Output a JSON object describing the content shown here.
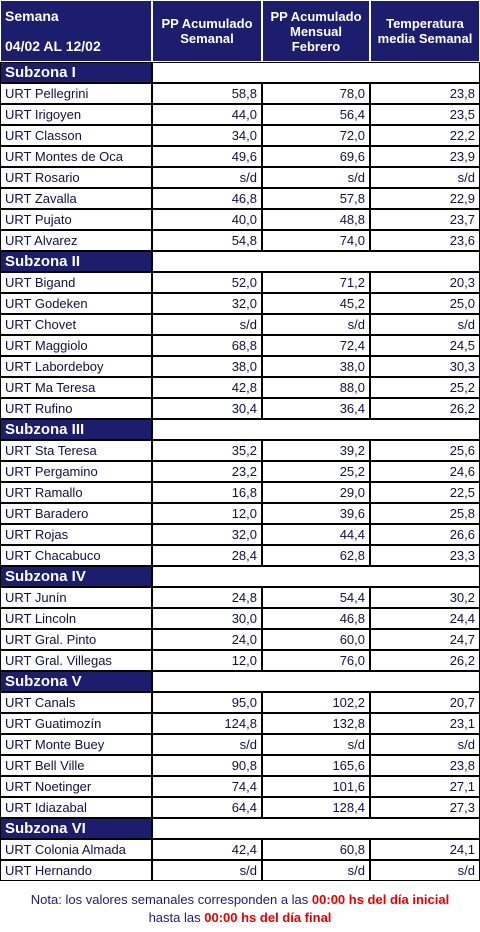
{
  "header": {
    "week_label": "Semana",
    "period": "04/02 AL 12/02",
    "columns": [
      "PP Acumulado Semanal",
      "PP Acumulado Mensual Febrero",
      "Temperatura media Semanal"
    ]
  },
  "subzones": [
    {
      "name": "Subzona I",
      "rows": [
        [
          "URT Pellegrini",
          "58,8",
          "78,0",
          "23,8"
        ],
        [
          "URT Irigoyen",
          "44,0",
          "56,4",
          "23,5"
        ],
        [
          "URT Classon",
          "34,0",
          "72,0",
          "22,2"
        ],
        [
          "URT Montes de Oca",
          "49,6",
          "69,6",
          "23,9"
        ],
        [
          "URT Rosario",
          "s/d",
          "s/d",
          "s/d"
        ],
        [
          "URT Zavalla",
          "46,8",
          "57,8",
          "22,9"
        ],
        [
          "URT Pujato",
          "40,0",
          "48,8",
          "23,7"
        ],
        [
          "URT Alvarez",
          "54,8",
          "74,0",
          "23,6"
        ]
      ]
    },
    {
      "name": "Subzona II",
      "rows": [
        [
          "URT Bigand",
          "52,0",
          "71,2",
          "20,3"
        ],
        [
          "URT Godeken",
          "32,0",
          "45,2",
          "25,0"
        ],
        [
          "URT Chovet",
          "s/d",
          "s/d",
          "s/d"
        ],
        [
          "URT Maggiolo",
          "68,8",
          "72,4",
          "24,5"
        ],
        [
          "URT Labordeboy",
          "38,0",
          "38,0",
          "30,3"
        ],
        [
          "URT Ma Teresa",
          "42,8",
          "88,0",
          "25,2"
        ],
        [
          "URT Rufino",
          "30,4",
          "36,4",
          "26,2"
        ]
      ]
    },
    {
      "name": "Subzona III",
      "rows": [
        [
          "URT Sta Teresa",
          "35,2",
          "39,2",
          "25,6"
        ],
        [
          "URT Pergamino",
          "23,2",
          "25,2",
          "24,6"
        ],
        [
          "URT Ramallo",
          "16,8",
          "29,0",
          "22,5"
        ],
        [
          "URT Baradero",
          "12,0",
          "39,6",
          "25,8"
        ],
        [
          "URT Rojas",
          "32,0",
          "44,4",
          "26,6"
        ],
        [
          "URT Chacabuco",
          "28,4",
          "62,8",
          "23,3"
        ]
      ]
    },
    {
      "name": "Subzona IV",
      "rows": [
        [
          "URT Junín",
          "24,8",
          "54,4",
          "30,2"
        ],
        [
          "URT Lincoln",
          "30,0",
          "46,8",
          "24,4"
        ],
        [
          "URT Gral. Pinto",
          "24,0",
          "60,0",
          "24,7"
        ],
        [
          "URT Gral. Villegas",
          "12,0",
          "76,0",
          "26,2"
        ]
      ]
    },
    {
      "name": "Subzona V",
      "rows": [
        [
          "URT Canals",
          "95,0",
          "102,2",
          "20,7"
        ],
        [
          "URT Guatimozín",
          "124,8",
          "132,8",
          "23,1"
        ],
        [
          "URT Monte Buey",
          "s/d",
          "s/d",
          "s/d"
        ],
        [
          "URT Bell Ville",
          "90,8",
          "165,6",
          "23,8"
        ],
        [
          "URT Noetinger",
          "74,4",
          "101,6",
          "27,1"
        ],
        [
          "URT Idiazabal",
          "64,4",
          "128,4",
          "27,3"
        ]
      ]
    },
    {
      "name": "Subzona VI",
      "rows": [
        [
          "URT Colonia Almada",
          "42,4",
          "60,8",
          "24,1"
        ],
        [
          "URT Hernando",
          "s/d",
          "s/d",
          "s/d"
        ]
      ]
    }
  ],
  "note": {
    "line1": "Nota: los valores semanales corresponden a las",
    "line1_red": "00:00 hs del día inicial",
    "line2": "hasta las",
    "line2_red": "00:00 hs del día final"
  }
}
